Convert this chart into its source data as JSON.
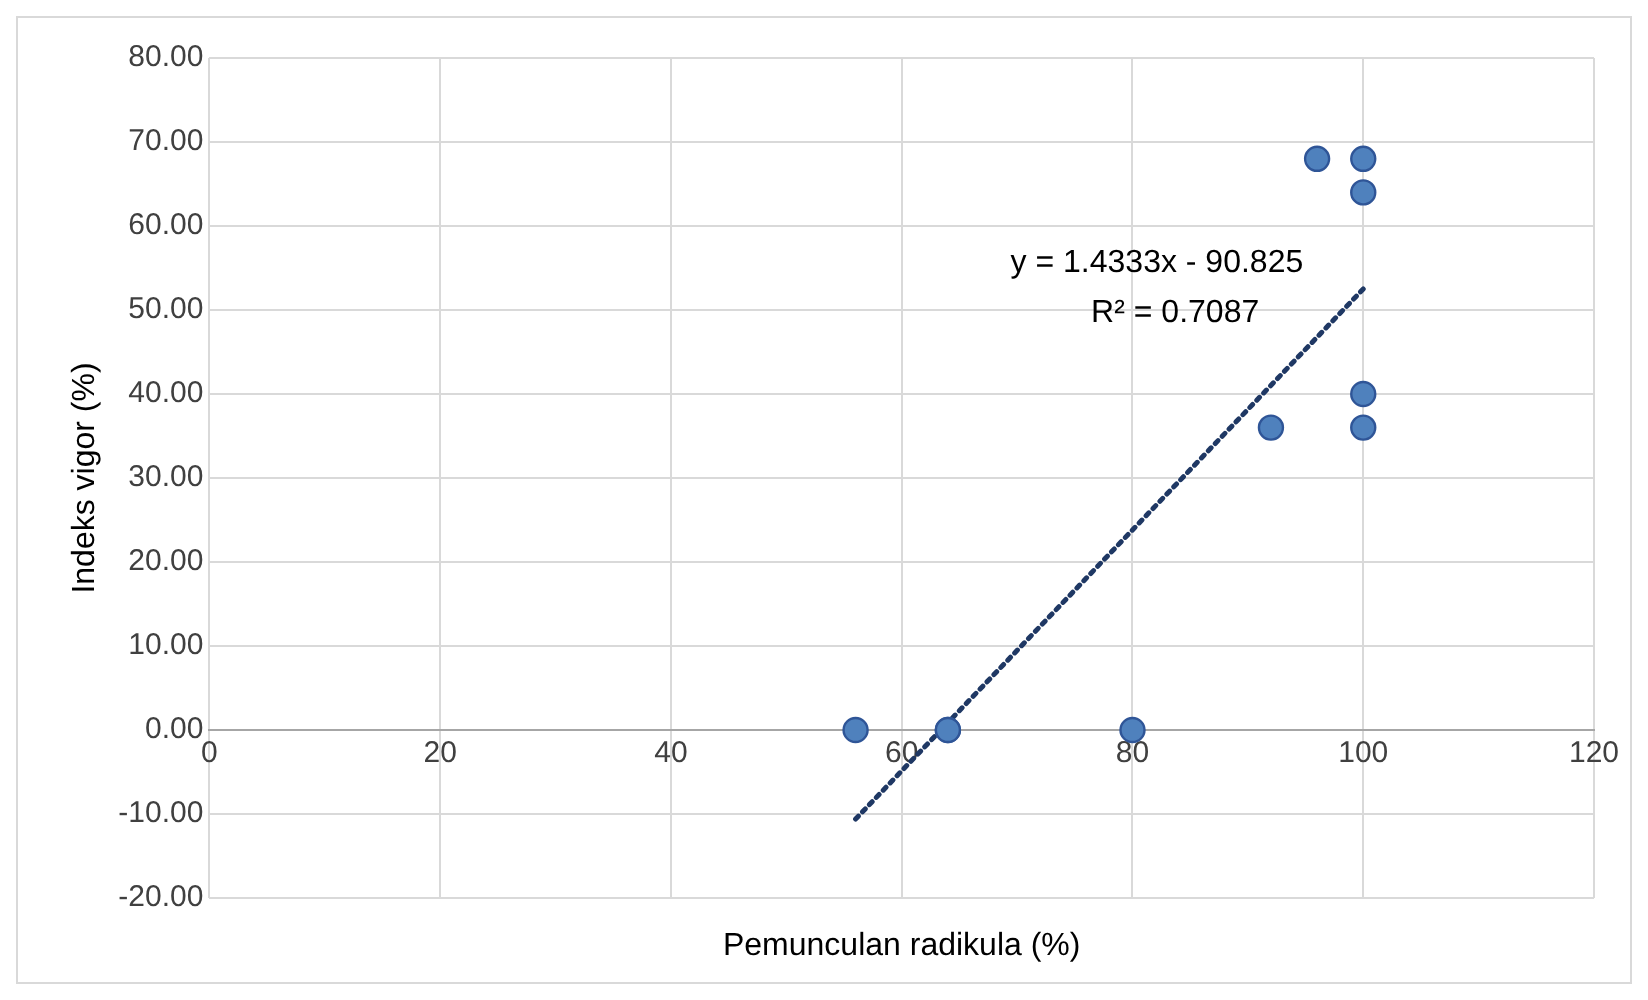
{
  "chart_data": {
    "type": "scatter",
    "xlabel": "Pemunculan radikula (%)",
    "ylabel": "Indeks vigor (%)",
    "xlim": [
      0,
      120
    ],
    "xticks": [
      0,
      20,
      40,
      60,
      80,
      100,
      120
    ],
    "ylim": [
      -20,
      80
    ],
    "yticks": [
      {
        "value": -20,
        "label": "-20.00"
      },
      {
        "value": -10,
        "label": "-10.00"
      },
      {
        "value": 0,
        "label": "0.00"
      },
      {
        "value": 10,
        "label": "10.00"
      },
      {
        "value": 20,
        "label": "20.00"
      },
      {
        "value": 30,
        "label": "30.00"
      },
      {
        "value": 40,
        "label": "40.00"
      },
      {
        "value": 50,
        "label": "50.00"
      },
      {
        "value": 60,
        "label": "60.00"
      },
      {
        "value": 70,
        "label": "70.00"
      },
      {
        "value": 80,
        "label": "80.00"
      }
    ],
    "grid": true,
    "legend": false,
    "series": [
      {
        "color": "#4f81bd",
        "marker": "circle",
        "x": [
          56,
          64,
          64,
          80,
          92,
          96,
          100,
          100,
          100,
          100
        ],
        "values": [
          0,
          0,
          0,
          0,
          36,
          68,
          68,
          64,
          40,
          36
        ]
      },
      {
        "type": "line",
        "color": "#1f3864",
        "line_style": "dotted",
        "marker": "none",
        "x": [
          56,
          100
        ],
        "values": [
          -10.6,
          52.5
        ]
      }
    ],
    "annotations": [
      "y = 1.4333x - 90.825",
      "R² = 0.7087"
    ]
  }
}
